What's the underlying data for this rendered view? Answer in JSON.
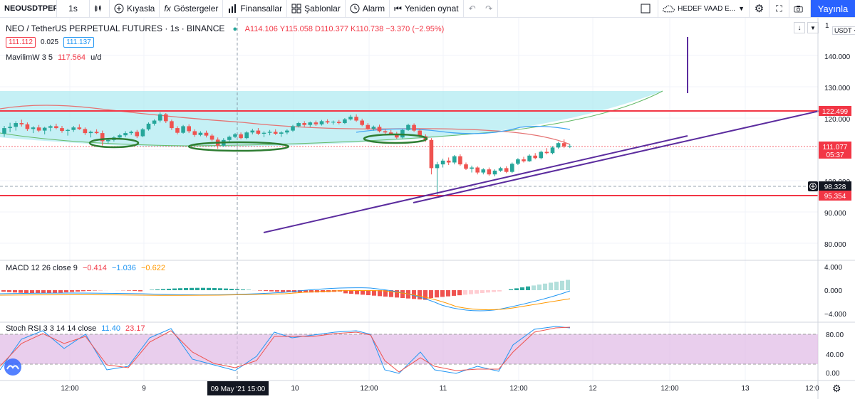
{
  "toolbar": {
    "symbol": "NEOUSDTPEF",
    "interval": "1s",
    "compare": "Kıyasla",
    "indicators": "Göstergeler",
    "financials": "Finansallar",
    "templates": "Şablonlar",
    "alert": "Alarm",
    "replay": "Yeniden oynat",
    "layout_name": "HEDEF VAAD E...",
    "publish": "Yayınla"
  },
  "legend": {
    "title": "NEO / TetherUS PERPETUAL FUTURES · 1s · BINANCE",
    "ohlc": "A114.106 Y115.058 D110.377 K110.738 −3.370 (−2.95%)",
    "bid": "111.112",
    "spread": "0.025",
    "ask": "111.137",
    "ma": "MavilimW 3 5",
    "ma_value": "117.564",
    "ma_extra": "u/d"
  },
  "macd": {
    "label": "MACD 12 26 close 9",
    "v1": "−0.414",
    "v2": "−1.036",
    "v3": "−0.622"
  },
  "stoch": {
    "label": "Stoch RSI 3 3 14 14 close",
    "k": "11.40",
    "d": "23.17"
  },
  "axis": {
    "currency": "USDT",
    "top_label": "1",
    "price_ticks": [
      "140.000",
      "130.000",
      "120.000",
      "100.000",
      "90.000",
      "80.000"
    ],
    "price_badges": {
      "upper": "122.499",
      "current": "111.077",
      "countdown": "05:37",
      "cross": "98.328",
      "lower": "95.354"
    },
    "macd_ticks": [
      "4.000",
      "0.000",
      "−4.000"
    ],
    "stoch_ticks": [
      "80.00",
      "40.00",
      "0.00"
    ],
    "time_ticks": [
      "12:00",
      "9",
      "12:00",
      "10",
      "12:00",
      "11",
      "12:00",
      "12",
      "12:00",
      "13",
      "12:0"
    ],
    "crosshair_time": "09 May '21  15:00"
  },
  "colors": {
    "up": "#26a69a",
    "down": "#ef5350",
    "level": "#f23645",
    "trend": "#5b2c9e",
    "cloud": "#b2ebf2",
    "green_marker": "#2e7d32",
    "stoch_band": "#e1bee7"
  },
  "chart_data": {
    "type": "candlestick",
    "price_range": [
      75,
      150
    ],
    "levels": [
      122.499,
      95.354
    ],
    "last_price": 111.077,
    "trendlines": [
      [
        [
          0.31,
          84.0
        ],
        [
          0.81,
          114.0
        ]
      ],
      [
        [
          0.485,
          95.5
        ],
        [
          0.96,
          122.5
        ]
      ]
    ],
    "candles": [
      [
        115.0,
        117.5,
        114.0,
        116.8
      ],
      [
        116.8,
        118.5,
        115.5,
        117.2
      ],
      [
        117.2,
        119.0,
        116.0,
        118.4
      ],
      [
        118.4,
        119.5,
        117.3,
        118.0
      ],
      [
        118.0,
        118.6,
        115.9,
        116.5
      ],
      [
        116.5,
        117.4,
        115.2,
        117.0
      ],
      [
        117.0,
        117.8,
        115.5,
        116.0
      ],
      [
        116.0,
        117.2,
        114.8,
        116.9
      ],
      [
        116.9,
        117.8,
        115.8,
        117.4
      ],
      [
        117.4,
        118.2,
        116.4,
        116.8
      ],
      [
        116.8,
        117.5,
        115.3,
        115.9
      ],
      [
        115.9,
        116.6,
        114.4,
        116.2
      ],
      [
        116.2,
        117.5,
        115.6,
        117.0
      ],
      [
        117.0,
        118.0,
        116.2,
        116.5
      ],
      [
        116.5,
        117.0,
        114.6,
        115.2
      ],
      [
        115.2,
        116.0,
        113.8,
        115.6
      ],
      [
        115.6,
        116.4,
        114.9,
        115.2
      ],
      [
        115.2,
        116.0,
        111.2,
        112.6
      ],
      [
        112.6,
        113.5,
        111.8,
        113.0
      ],
      [
        113.0,
        114.2,
        112.5,
        113.8
      ],
      [
        113.8,
        115.0,
        113.2,
        114.5
      ],
      [
        114.5,
        115.8,
        113.9,
        115.2
      ],
      [
        115.2,
        116.0,
        114.6,
        115.6
      ],
      [
        115.6,
        116.2,
        113.6,
        114.2
      ],
      [
        114.2,
        116.8,
        113.9,
        116.4
      ],
      [
        116.4,
        118.6,
        116.0,
        118.2
      ],
      [
        118.2,
        119.6,
        117.6,
        119.2
      ],
      [
        119.2,
        121.8,
        118.6,
        121.2
      ],
      [
        121.2,
        121.6,
        118.4,
        119.0
      ],
      [
        119.0,
        119.5,
        116.2,
        116.8
      ],
      [
        116.8,
        117.4,
        114.8,
        115.3
      ],
      [
        115.3,
        117.8,
        115.0,
        117.4
      ],
      [
        117.4,
        118.0,
        115.2,
        115.8
      ],
      [
        115.8,
        116.4,
        114.0,
        114.6
      ],
      [
        114.6,
        115.8,
        114.2,
        115.3
      ],
      [
        115.3,
        116.0,
        113.8,
        114.4
      ],
      [
        114.4,
        115.0,
        112.6,
        113.1
      ],
      [
        113.1,
        113.8,
        110.2,
        111.2
      ],
      [
        111.2,
        113.6,
        110.8,
        113.0
      ],
      [
        113.0,
        114.4,
        112.5,
        114.0
      ],
      [
        114.0,
        115.2,
        113.6,
        114.8
      ],
      [
        114.8,
        115.4,
        113.2,
        113.6
      ],
      [
        113.6,
        115.8,
        113.2,
        115.4
      ],
      [
        115.4,
        116.6,
        114.8,
        116.0
      ],
      [
        116.0,
        116.8,
        114.6,
        115.0
      ],
      [
        115.0,
        115.8,
        113.9,
        115.3
      ],
      [
        115.3,
        116.2,
        114.5,
        115.6
      ],
      [
        115.6,
        116.4,
        114.6,
        115.0
      ],
      [
        115.0,
        115.8,
        114.0,
        115.4
      ],
      [
        115.4,
        116.4,
        114.8,
        116.0
      ],
      [
        116.0,
        117.8,
        115.6,
        117.4
      ],
      [
        117.4,
        118.8,
        117.0,
        118.4
      ],
      [
        118.4,
        119.0,
        117.2,
        117.8
      ],
      [
        117.8,
        118.9,
        117.2,
        118.6
      ],
      [
        118.6,
        119.2,
        117.5,
        118.0
      ],
      [
        118.0,
        119.4,
        117.6,
        119.0
      ],
      [
        119.0,
        119.6,
        118.2,
        118.6
      ],
      [
        118.6,
        119.2,
        117.9,
        118.8
      ],
      [
        118.8,
        119.4,
        118.0,
        118.4
      ],
      [
        118.4,
        120.0,
        118.1,
        119.6
      ],
      [
        119.6,
        121.0,
        119.2,
        120.4
      ],
      [
        120.4,
        121.2,
        118.8,
        119.2
      ],
      [
        119.2,
        119.8,
        117.4,
        117.8
      ],
      [
        117.8,
        118.4,
        116.2,
        116.6
      ],
      [
        116.6,
        117.6,
        116.0,
        117.2
      ],
      [
        117.2,
        117.9,
        115.4,
        115.8
      ],
      [
        115.8,
        116.4,
        114.8,
        115.4
      ],
      [
        115.4,
        116.2,
        114.6,
        115.0
      ],
      [
        115.0,
        115.6,
        113.4,
        113.8
      ],
      [
        113.8,
        116.6,
        113.5,
        116.2
      ],
      [
        116.2,
        118.2,
        115.9,
        117.8
      ],
      [
        117.8,
        118.3,
        115.6,
        116.0
      ],
      [
        116.0,
        116.5,
        113.8,
        114.2
      ],
      [
        114.2,
        114.8,
        112.4,
        113.0
      ],
      [
        113.0,
        113.6,
        102.0,
        104.0
      ],
      [
        104.0,
        106.0,
        95.5,
        105.2
      ],
      [
        105.2,
        107.0,
        104.2,
        106.4
      ],
      [
        106.4,
        107.4,
        105.0,
        105.8
      ],
      [
        105.8,
        108.2,
        105.2,
        107.8
      ],
      [
        107.8,
        108.4,
        104.8,
        105.2
      ],
      [
        105.2,
        105.8,
        103.4,
        103.8
      ],
      [
        103.8,
        104.8,
        102.6,
        104.2
      ],
      [
        104.2,
        104.6,
        102.0,
        102.6
      ],
      [
        102.6,
        104.0,
        102.0,
        103.6
      ],
      [
        103.6,
        104.2,
        101.6,
        102.0
      ],
      [
        102.0,
        103.6,
        101.4,
        103.2
      ],
      [
        103.2,
        104.4,
        102.8,
        104.0
      ],
      [
        104.0,
        104.6,
        102.4,
        102.8
      ],
      [
        102.8,
        105.8,
        102.4,
        105.4
      ],
      [
        105.4,
        107.2,
        105.0,
        106.8
      ],
      [
        106.8,
        107.6,
        105.8,
        106.2
      ],
      [
        106.2,
        108.4,
        106.0,
        108.0
      ],
      [
        108.0,
        108.8,
        106.8,
        107.2
      ],
      [
        107.2,
        109.6,
        106.8,
        109.2
      ],
      [
        109.2,
        110.4,
        108.4,
        108.8
      ],
      [
        108.8,
        111.0,
        108.4,
        110.6
      ],
      [
        110.6,
        112.4,
        110.2,
        112.0
      ],
      [
        112.0,
        113.2,
        110.4,
        110.9
      ],
      [
        110.9,
        111.6,
        110.4,
        111.08
      ]
    ]
  }
}
